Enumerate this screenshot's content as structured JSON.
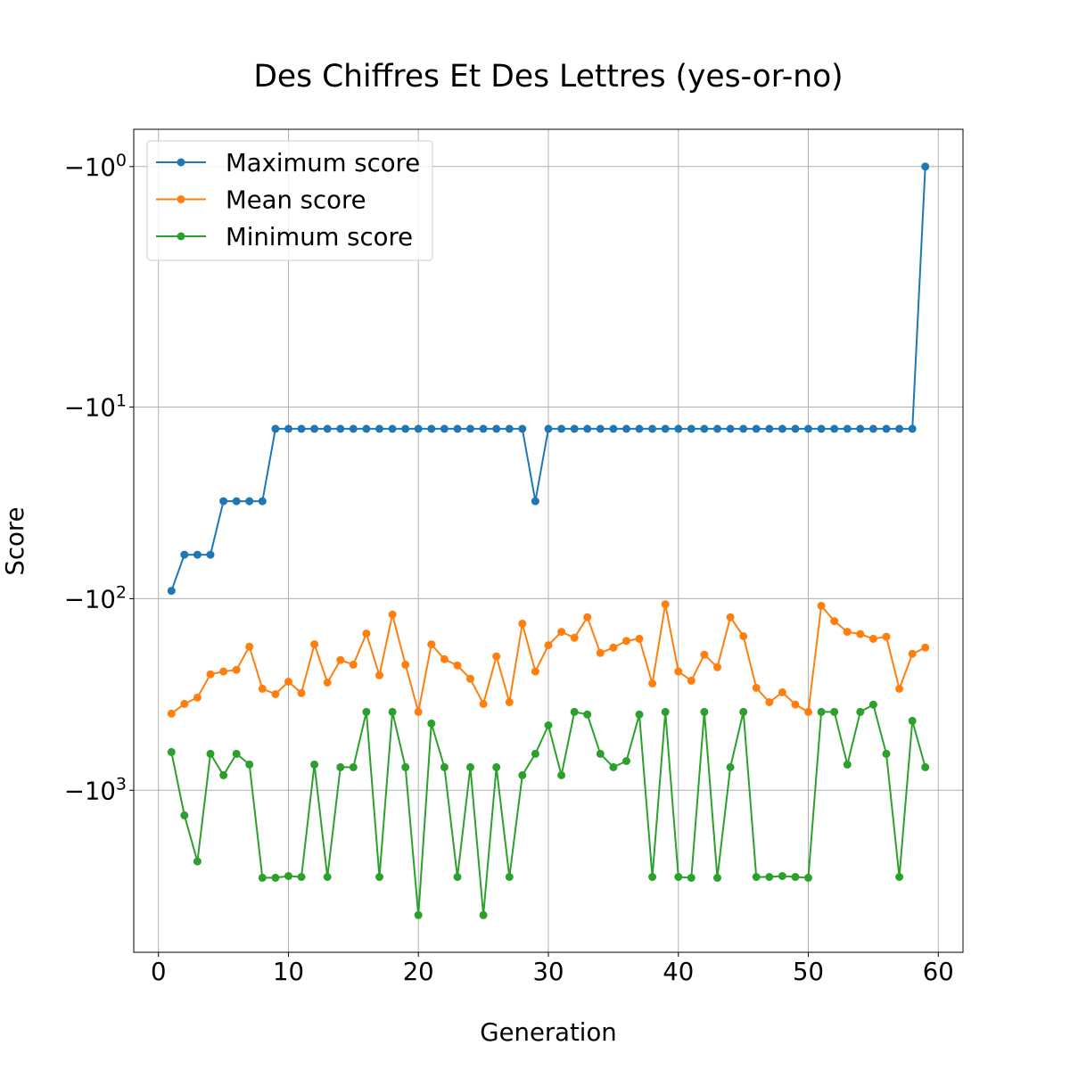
{
  "chart_data": {
    "type": "line",
    "title": "Des Chiffres Et Des Lettres (yes-or-no)",
    "xlabel": "Generation",
    "ylabel": "Score",
    "xlim": [
      -1.9,
      61.9
    ],
    "ylim": [
      -7000,
      -0.65
    ],
    "yscale": "symlog",
    "grid": true,
    "legend_position": "upper left",
    "xticks": [
      0,
      10,
      20,
      30,
      40,
      50,
      60
    ],
    "xtick_labels": [
      "0",
      "10",
      "20",
      "30",
      "40",
      "50",
      "60"
    ],
    "yticks": [
      -1,
      -10,
      -100,
      -1000
    ],
    "ytick_labels": [
      {
        "base": "−10",
        "exp": "0"
      },
      {
        "base": "−10",
        "exp": "1"
      },
      {
        "base": "−10",
        "exp": "2"
      },
      {
        "base": "−10",
        "exp": "3"
      }
    ],
    "x": [
      1,
      2,
      3,
      4,
      5,
      6,
      7,
      8,
      9,
      10,
      11,
      12,
      13,
      14,
      15,
      16,
      17,
      18,
      19,
      20,
      21,
      22,
      23,
      24,
      25,
      26,
      27,
      28,
      29,
      30,
      31,
      32,
      33,
      34,
      35,
      36,
      37,
      38,
      39,
      40,
      41,
      42,
      43,
      44,
      45,
      46,
      47,
      48,
      49,
      50,
      51,
      52,
      53,
      54,
      55,
      56,
      57,
      58,
      59
    ],
    "series": [
      {
        "name": "Maximum score",
        "color": "#1f77b4",
        "marker": "circle",
        "values": [
          -91,
          -59,
          -59,
          -59,
          -31,
          -31,
          -31,
          -31,
          -13,
          -13,
          -13,
          -13,
          -13,
          -13,
          -13,
          -13,
          -13,
          -13,
          -13,
          -13,
          -13,
          -13,
          -13,
          -13,
          -13,
          -13,
          -13,
          -13,
          -31,
          -13,
          -13,
          -13,
          -13,
          -13,
          -13,
          -13,
          -13,
          -13,
          -13,
          -13,
          -13,
          -13,
          -13,
          -13,
          -13,
          -13,
          -13,
          -13,
          -13,
          -13,
          -13,
          -13,
          -13,
          -13,
          -13,
          -13,
          -13,
          -13,
          -1
        ]
      },
      {
        "name": "Mean score",
        "color": "#ff7f0e",
        "marker": "circle",
        "values": [
          -398,
          -354,
          -328,
          -248,
          -240,
          -235,
          -178,
          -295,
          -315,
          -271,
          -311,
          -173,
          -274,
          -209,
          -221,
          -152,
          -251,
          -121,
          -221,
          -390,
          -173,
          -207,
          -223,
          -262,
          -354,
          -200,
          -347,
          -135,
          -240,
          -175,
          -149,
          -160,
          -125,
          -192,
          -180,
          -166,
          -162,
          -277,
          -107,
          -240,
          -268,
          -196,
          -228,
          -125,
          -157,
          -292,
          -347,
          -308,
          -357,
          -390,
          -109,
          -131,
          -149,
          -153,
          -162,
          -158,
          -295,
          -194,
          -180
        ]
      },
      {
        "name": "Minimum score",
        "color": "#2ca02c",
        "marker": "circle",
        "values": [
          -631,
          -1350,
          -2350,
          -645,
          -834,
          -645,
          -733,
          -2860,
          -2860,
          -2800,
          -2830,
          -733,
          -2830,
          -757,
          -757,
          -390,
          -2830,
          -390,
          -757,
          -4480,
          -448,
          -757,
          -2830,
          -757,
          -4480,
          -757,
          -2830,
          -834,
          -645,
          -458,
          -834,
          -390,
          -402,
          -645,
          -757,
          -703,
          -402,
          -2830,
          -390,
          -2830,
          -2860,
          -390,
          -2860,
          -757,
          -390,
          -2830,
          -2830,
          -2800,
          -2830,
          -2860,
          -390,
          -390,
          -733,
          -390,
          -357,
          -645,
          -2830,
          -434,
          -757
        ]
      }
    ]
  }
}
